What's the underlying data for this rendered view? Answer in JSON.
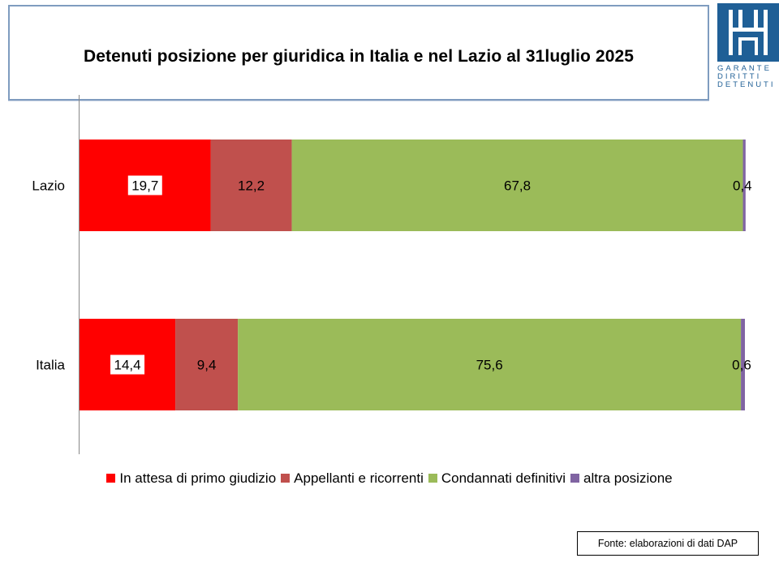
{
  "header": {
    "title": "Detenuti posizione per giuridica in Italia e nel Lazio al 31luglio 2025"
  },
  "logo": {
    "lines": [
      "GARANTE",
      "DIRITTI",
      "DETENUTI"
    ],
    "color": "#1f5f96"
  },
  "chart_data": {
    "type": "bar",
    "orientation": "horizontal",
    "stacked": true,
    "percent": true,
    "categories": [
      "Lazio",
      "Italia"
    ],
    "series": [
      {
        "name": "In attesa di primo giudizio",
        "color": "#ff0000",
        "values": [
          19.7,
          14.4
        ],
        "labels": [
          "19,7",
          "14,4"
        ]
      },
      {
        "name": "Appellanti e ricorrenti",
        "color": "#c0504d",
        "values": [
          12.2,
          9.4
        ],
        "labels": [
          "12,2",
          "9,4"
        ]
      },
      {
        "name": "Condannati definitivi",
        "color": "#9bbb59",
        "values": [
          67.8,
          75.6
        ],
        "labels": [
          "67,8",
          "75,6"
        ]
      },
      {
        "name": "altra posizione",
        "color": "#8064a2",
        "values": [
          0.4,
          0.6
        ],
        "labels": [
          "0,4",
          "0,6"
        ]
      }
    ],
    "xlim": [
      0,
      100
    ],
    "grid": false,
    "legend_position": "bottom"
  },
  "footer": {
    "source": "Fonte: elaborazioni di dati DAP"
  }
}
